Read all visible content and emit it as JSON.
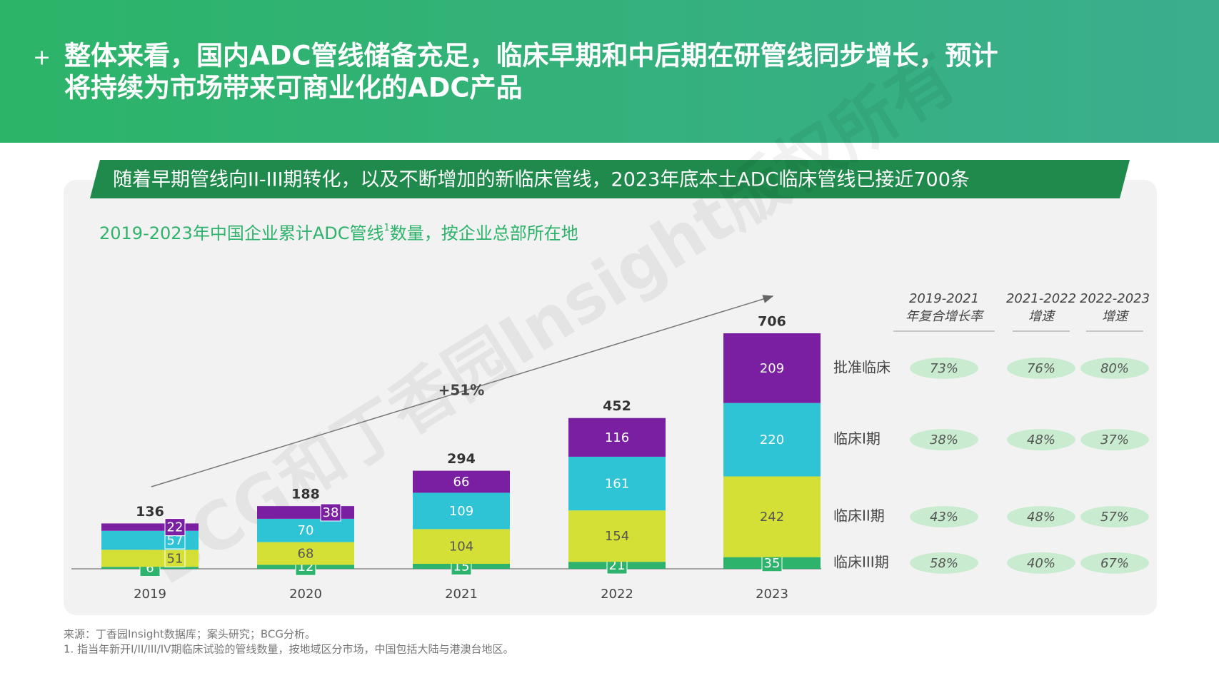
{
  "header": {
    "marker": "+",
    "title_lines": [
      "整体来看，国内ADC管线储备充足，临床早期和中后期在研管线同步增长，预计",
      "将持续为市场带来可商业化的ADC产品"
    ]
  },
  "banner": "随着早期管线向II-III期转化，以及不断增加的新临床管线，2023年底本土ADC临床管线已接近700条",
  "chart_data": {
    "type": "stacked-bar",
    "subtitle": [
      "2019-2023年中国企业累计ADC管线",
      "1",
      "数量，按企业总部所在地"
    ],
    "categories": [
      "2019",
      "2020",
      "2021",
      "2022",
      "2023"
    ],
    "series": [
      {
        "name": "临床III期",
        "color": "#2db36b",
        "values": [
          6,
          12,
          15,
          21,
          35
        ],
        "growth": [
          58,
          40,
          67
        ],
        "growth_labels": [
          "58%",
          "40%",
          "67%"
        ]
      },
      {
        "name": "临床II期",
        "color": "#d4e035",
        "values": [
          51,
          68,
          104,
          154,
          242
        ],
        "growth": [
          43,
          48,
          57
        ],
        "growth_labels": [
          "43%",
          "48%",
          "57%"
        ]
      },
      {
        "name": "临床I期",
        "color": "#2ec4d6",
        "values": [
          57,
          70,
          109,
          161,
          220
        ],
        "growth": [
          38,
          48,
          37
        ],
        "growth_labels": [
          "38%",
          "48%",
          "37%"
        ]
      },
      {
        "name": "批准临床",
        "color": "#7a1fa2",
        "values": [
          22,
          38,
          66,
          116,
          209
        ],
        "growth": [
          73,
          76,
          80
        ],
        "growth_labels": [
          "73%",
          "76%",
          "80%"
        ]
      }
    ],
    "totals": [
      136,
      188,
      294,
      452,
      706
    ],
    "growth_headers": [
      [
        "2019-2021",
        "年复合增长率"
      ],
      [
        "2021-2022",
        "增速"
      ],
      [
        "2022-2023",
        "增速"
      ]
    ],
    "annotation": "+51%",
    "watermark": "BCG和丁香园Insight版权所有"
  },
  "footer": [
    "来源：丁香园Insight数据库；案头研究；BCG分析。",
    "1. 指当年新开I/II/III/IV期临床试验的管线数量，按地域区分市场，中国包括大陆与港澳台地区。"
  ]
}
